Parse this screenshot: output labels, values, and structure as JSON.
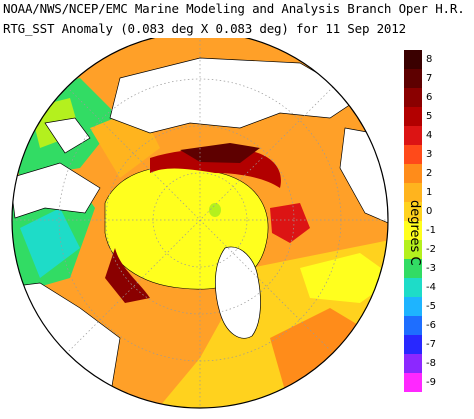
{
  "header": {
    "line1": "NOAA/NWS/NCEP/EMC Marine Modeling and Analysis Branch Oper H.R.",
    "line2": "RTG_SST Anomaly (0.083 deg X 0.083 deg) for 11 Sep 2012"
  },
  "colorbar": {
    "unit_label": "degrees C",
    "ticks": [
      "8",
      "7",
      "6",
      "5",
      "4",
      "3",
      "2",
      "1",
      "0",
      "-1",
      "-2",
      "-3",
      "-4",
      "-5",
      "-6",
      "-7",
      "-8",
      "-9"
    ],
    "colors": [
      "#3a0000",
      "#5e0000",
      "#8a0000",
      "#b20000",
      "#dc1414",
      "#ff4a1a",
      "#ff8c1a",
      "#ffb41e",
      "#ffd21e",
      "#ffff1e",
      "#b4f01e",
      "#32dc64",
      "#1edcc8",
      "#1eb4ff",
      "#1e6eff",
      "#2828ff",
      "#8c28ff",
      "#ff28ff"
    ]
  },
  "map": {
    "projection": "polar stereographic (north pole)",
    "palette": {
      "ocean_base": "#ffa028",
      "land": "#ffffff",
      "outline": "#000000",
      "grid": "#9a9a9a"
    }
  }
}
